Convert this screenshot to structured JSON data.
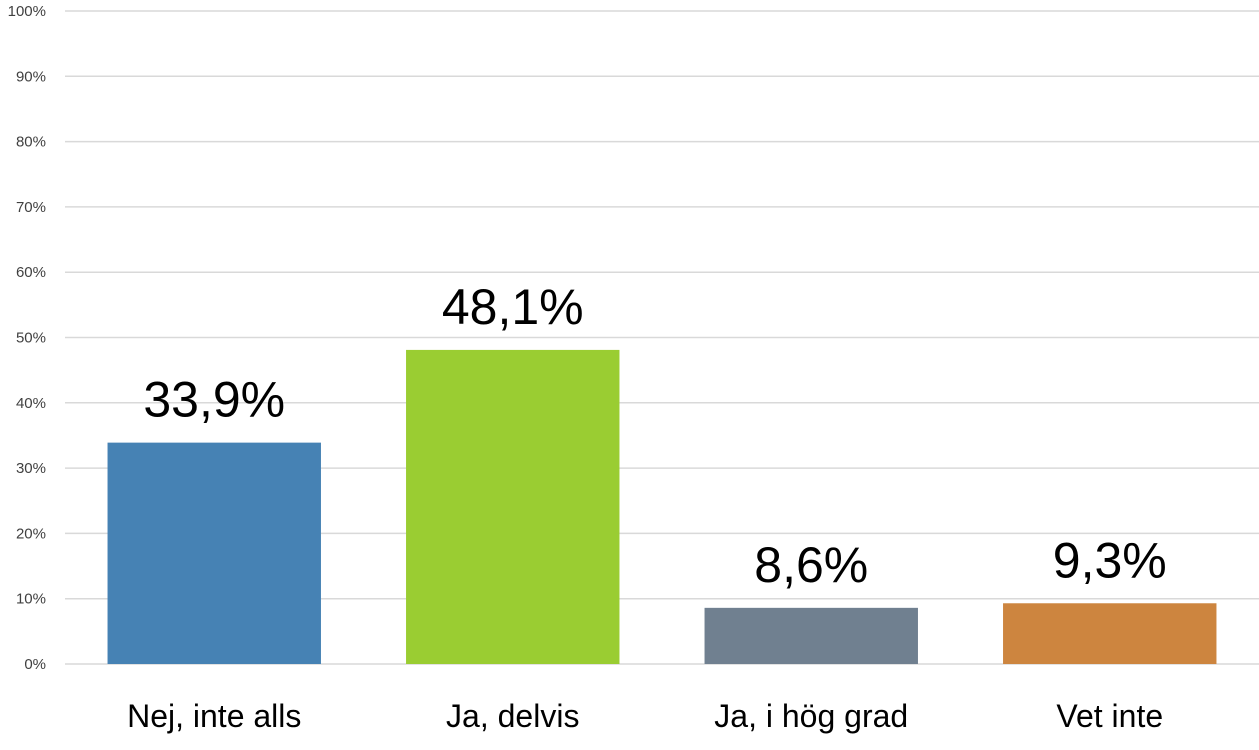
{
  "chart_data": {
    "type": "bar",
    "categories": [
      "Nej, inte alls",
      "Ja, delvis",
      "Ja, i hög grad",
      "Vet inte"
    ],
    "values": [
      33.9,
      48.1,
      8.6,
      9.3
    ],
    "data_labels": [
      "33,9%",
      "48,1%",
      "8,6%",
      "9,3%"
    ],
    "colors": [
      "#4682B4",
      "#9ACD32",
      "#708090",
      "#CD853F"
    ],
    "ylim": [
      0,
      100
    ],
    "yticks": [
      0,
      10,
      20,
      30,
      40,
      50,
      60,
      70,
      80,
      90,
      100
    ],
    "ytick_labels": [
      "0%",
      "10%",
      "20%",
      "30%",
      "40%",
      "50%",
      "60%",
      "70%",
      "80%",
      "90%",
      "100%"
    ],
    "grid": true,
    "gridline_color": "#d9d9d9",
    "legend": "none",
    "title": "",
    "xlabel": "",
    "ylabel": ""
  }
}
